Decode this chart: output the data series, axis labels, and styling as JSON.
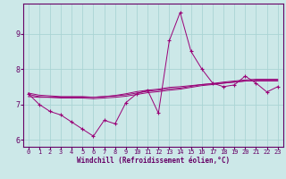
{
  "xlabel": "Windchill (Refroidissement éolien,°C)",
  "bg_color": "#cce8e8",
  "grid_color": "#aad4d4",
  "line_color": "#990077",
  "x_values": [
    0,
    1,
    2,
    3,
    4,
    5,
    6,
    7,
    8,
    9,
    10,
    11,
    12,
    13,
    14,
    15,
    16,
    17,
    18,
    19,
    20,
    21,
    22,
    23
  ],
  "main_y": [
    7.3,
    7.0,
    6.8,
    6.7,
    6.5,
    6.3,
    6.1,
    6.55,
    6.45,
    7.05,
    7.3,
    7.4,
    6.75,
    8.8,
    9.6,
    8.5,
    8.0,
    7.6,
    7.5,
    7.55,
    7.8,
    7.6,
    7.35,
    7.5
  ],
  "trend1_y": [
    7.28,
    7.22,
    7.2,
    7.18,
    7.18,
    7.18,
    7.16,
    7.18,
    7.2,
    7.23,
    7.28,
    7.33,
    7.36,
    7.4,
    7.43,
    7.48,
    7.53,
    7.56,
    7.6,
    7.63,
    7.66,
    7.68,
    7.68,
    7.68
  ],
  "trend2_y": [
    7.22,
    7.2,
    7.2,
    7.2,
    7.2,
    7.2,
    7.2,
    7.22,
    7.25,
    7.3,
    7.36,
    7.4,
    7.43,
    7.48,
    7.5,
    7.53,
    7.56,
    7.58,
    7.6,
    7.63,
    7.66,
    7.66,
    7.66,
    7.66
  ],
  "trend3_y": [
    7.32,
    7.26,
    7.24,
    7.22,
    7.22,
    7.22,
    7.2,
    7.22,
    7.24,
    7.27,
    7.32,
    7.37,
    7.4,
    7.44,
    7.46,
    7.51,
    7.56,
    7.59,
    7.63,
    7.66,
    7.69,
    7.71,
    7.71,
    7.71
  ],
  "ylim": [
    5.8,
    9.85
  ],
  "xlim": [
    -0.5,
    23.5
  ],
  "yticks": [
    6,
    7,
    8,
    9
  ],
  "xticks": [
    0,
    1,
    2,
    3,
    4,
    5,
    6,
    7,
    8,
    9,
    10,
    11,
    12,
    13,
    14,
    15,
    16,
    17,
    18,
    19,
    20,
    21,
    22,
    23
  ],
  "tick_fontsize": 5,
  "xlabel_fontsize": 5.5
}
